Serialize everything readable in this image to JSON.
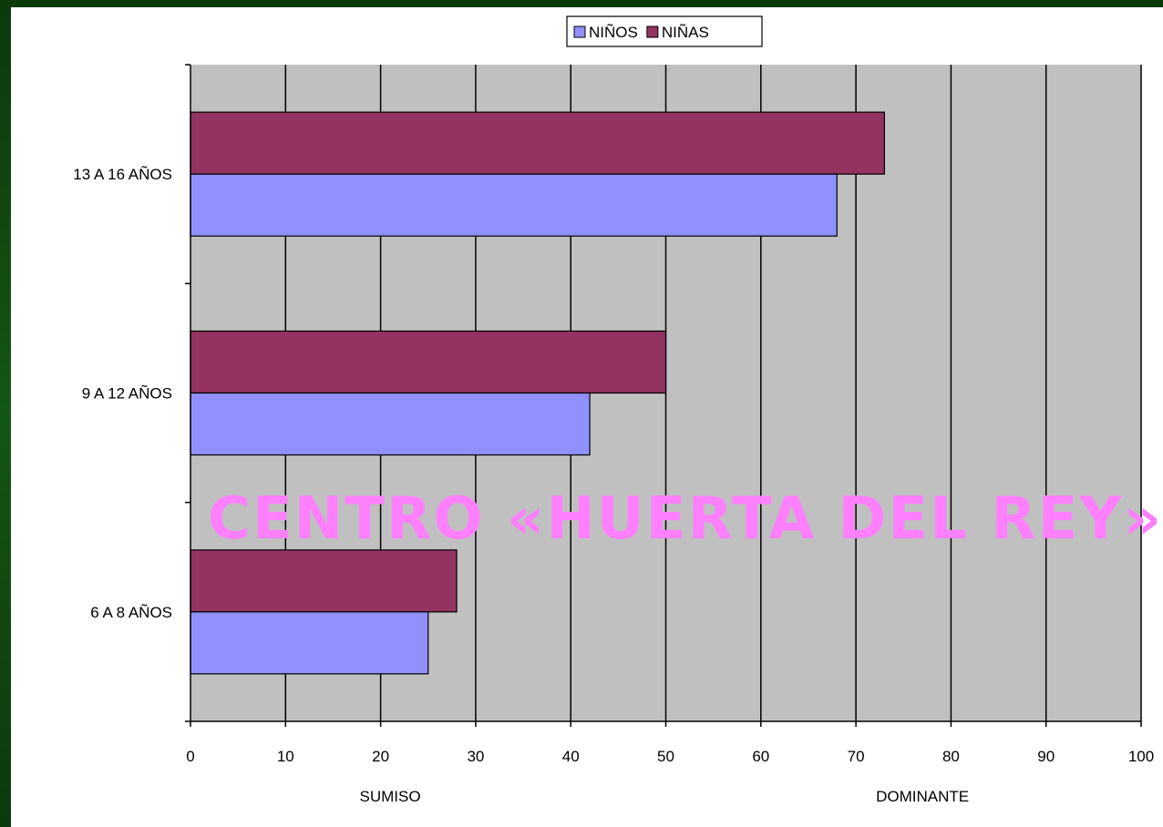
{
  "chart_data": {
    "type": "bar",
    "orientation": "horizontal",
    "categories": [
      "13 A 16 AÑOS",
      "9 A 12 AÑOS",
      "6 A 8 AÑOS"
    ],
    "series": [
      {
        "name": "NIÑOS",
        "color": "#9090ff",
        "values": [
          68,
          42,
          25
        ]
      },
      {
        "name": "NIÑAS",
        "color": "#933361",
        "values": [
          73,
          50,
          28
        ]
      }
    ],
    "xlim": [
      0,
      100
    ],
    "x_ticks": [
      "0",
      "10",
      "20",
      "30",
      "40",
      "50",
      "60",
      "70",
      "80",
      "90",
      "100"
    ],
    "x_annotations": {
      "left": "SUMISO",
      "right": "DOMINANTE"
    },
    "watermark": "CENTRO «HUERTA DEL REY»",
    "grid": "vertical",
    "legend_position": "top-center",
    "plot_background": "#c0c0c0"
  }
}
